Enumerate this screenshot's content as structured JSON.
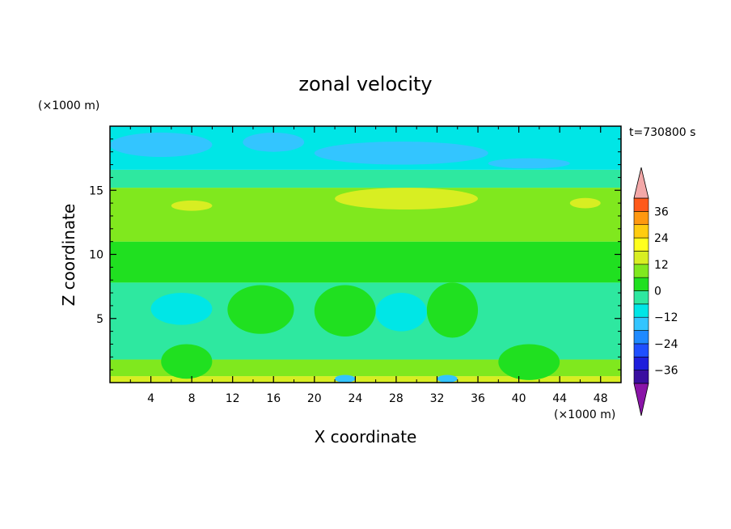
{
  "chart_data": {
    "type": "heatmap",
    "title": "zonal velocity",
    "xlabel": "X coordinate",
    "ylabel": "Z coordinate",
    "x_unit": "(×1000 m)",
    "y_unit": "(×1000 m)",
    "time_label": "t=730800 s",
    "xlim": [
      0,
      50
    ],
    "ylim": [
      0,
      20
    ],
    "x_ticks": [
      4,
      8,
      12,
      16,
      20,
      24,
      28,
      32,
      36,
      40,
      44,
      48
    ],
    "y_ticks": [
      5,
      10,
      15
    ],
    "colorbar": {
      "ticks": [
        36,
        24,
        12,
        0,
        -12,
        -24,
        -36
      ],
      "levels": [
        -42,
        -36,
        -30,
        -24,
        -18,
        -12,
        -6,
        0,
        6,
        12,
        18,
        24,
        30,
        36,
        42
      ],
      "colors": [
        "#6a1b9a",
        "#3a0fa0",
        "#1e1edc",
        "#1f4fff",
        "#1f8aff",
        "#33c5ff",
        "#00e6e6",
        "#2ee8a0",
        "#20e020",
        "#80e81e",
        "#d8ee22",
        "#ffff1e",
        "#ffcc10",
        "#ff9810",
        "#ff5a1a",
        "#ff1e1e",
        "#f0a0a0"
      ],
      "extend_low_color": "#8a14a8",
      "extend_high_color": "#f3a8a8"
    },
    "bands": [
      {
        "z": [
          0,
          0.5
        ],
        "value": 12
      },
      {
        "z": [
          0.5,
          1.8
        ],
        "value": 6
      },
      {
        "z": [
          1.8,
          7.8
        ],
        "value": -3
      },
      {
        "z": [
          7.8,
          11.0
        ],
        "value": 3
      },
      {
        "z": [
          11.0,
          15.2
        ],
        "value": 9
      },
      {
        "z": [
          15.2,
          16.6
        ],
        "value": -3
      },
      {
        "z": [
          16.6,
          20
        ],
        "value": -9
      }
    ],
    "features": [
      {
        "x": [
          0,
          10
        ],
        "z": [
          17.6,
          19.5
        ],
        "value": -15
      },
      {
        "x": [
          13,
          19
        ],
        "z": [
          18.0,
          19.5
        ],
        "value": -15
      },
      {
        "x": [
          20,
          37
        ],
        "z": [
          17.0,
          18.8
        ],
        "value": -15
      },
      {
        "x": [
          37,
          45
        ],
        "z": [
          16.7,
          17.5
        ],
        "value": -15
      },
      {
        "x": [
          22,
          36
        ],
        "z": [
          13.5,
          15.2
        ],
        "value": 15
      },
      {
        "x": [
          6,
          10
        ],
        "z": [
          13.4,
          14.2
        ],
        "value": 15
      },
      {
        "x": [
          45,
          48
        ],
        "z": [
          13.6,
          14.4
        ],
        "value": 15
      },
      {
        "x": [
          4,
          10
        ],
        "z": [
          4.5,
          7.0
        ],
        "value": -9
      },
      {
        "x": [
          11.5,
          18
        ],
        "z": [
          3.8,
          7.6
        ],
        "value": 3
      },
      {
        "x": [
          20,
          26
        ],
        "z": [
          3.6,
          7.6
        ],
        "value": 3
      },
      {
        "x": [
          31,
          36
        ],
        "z": [
          3.5,
          7.8
        ],
        "value": 3
      },
      {
        "x": [
          26,
          31
        ],
        "z": [
          4.0,
          7.0
        ],
        "value": -9
      },
      {
        "x": [
          5,
          10
        ],
        "z": [
          0.3,
          3.0
        ],
        "value": 3
      },
      {
        "x": [
          38,
          44
        ],
        "z": [
          0.2,
          3.0
        ],
        "value": 3
      },
      {
        "x": [
          22,
          24
        ],
        "z": [
          0,
          0.6
        ],
        "value": -15
      },
      {
        "x": [
          32,
          34
        ],
        "z": [
          0,
          0.6
        ],
        "value": -15
      }
    ]
  }
}
